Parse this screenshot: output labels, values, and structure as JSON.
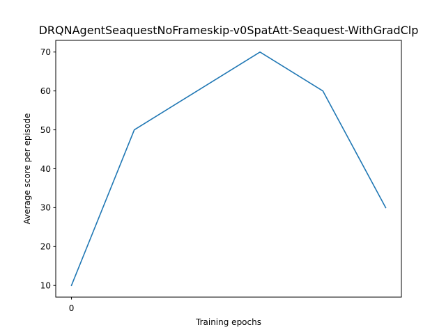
{
  "chart_data": {
    "type": "line",
    "title": "DRQNAgentSeaquestNoFrameskip-v0SpatAtt-Seaquest-WithGradClp",
    "xlabel": "Training epochs",
    "ylabel": "Average score per episode",
    "x": [
      0,
      1,
      2,
      3,
      4,
      5
    ],
    "xticks": [
      0
    ],
    "xticklabels": [
      "0"
    ],
    "xlim": [
      -0.25,
      5.25
    ],
    "ylim": [
      7,
      73
    ],
    "yticks": [
      10,
      20,
      30,
      40,
      50,
      60,
      70
    ],
    "yticklabels": [
      "10",
      "20",
      "30",
      "40",
      "50",
      "60",
      "70"
    ],
    "grid": false,
    "series": [
      {
        "color": "#1f77b4",
        "values": [
          10,
          50,
          60,
          70,
          60,
          30
        ]
      }
    ]
  }
}
